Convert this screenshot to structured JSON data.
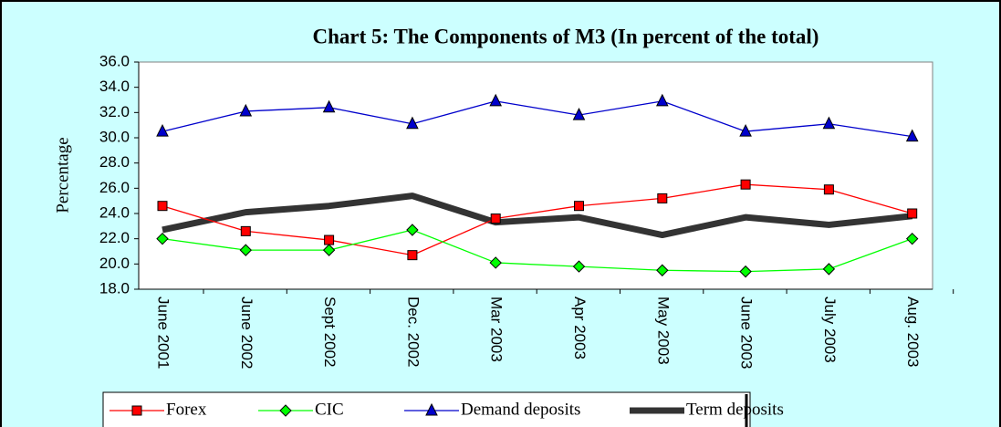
{
  "chart_data": {
    "type": "line",
    "title": "Chart 5:  The Components of M3 (In percent of the total)",
    "y_label": "Percentage",
    "categories": [
      "June 2001",
      "June 2002",
      "Sept 2002",
      "Dec. 2002",
      "Mar 2003",
      "Apr 2003",
      "May 2003",
      "June 2003",
      "July 2003",
      "Aug. 2003"
    ],
    "series": [
      {
        "name": "Forex",
        "color": "#ff0000",
        "marker": "square",
        "values": [
          24.6,
          22.6,
          21.9,
          20.7,
          23.6,
          24.6,
          25.2,
          26.3,
          25.9,
          24.0
        ]
      },
      {
        "name": "CIC",
        "color": "#00ff00",
        "marker": "diamond",
        "values": [
          22.0,
          21.1,
          21.1,
          22.7,
          20.1,
          19.8,
          19.5,
          19.4,
          19.6,
          22.0
        ]
      },
      {
        "name": "Demand deposits",
        "color": "#0000cc",
        "marker": "triangle",
        "values": [
          30.5,
          32.1,
          32.4,
          31.1,
          32.9,
          31.8,
          32.9,
          30.5,
          31.1,
          30.1
        ]
      },
      {
        "name": "Term deposits",
        "color": "#333333",
        "marker": "none",
        "line_width": 7,
        "values": [
          22.7,
          24.1,
          24.6,
          25.4,
          23.3,
          23.7,
          22.3,
          23.7,
          23.1,
          23.8
        ]
      }
    ],
    "ylim": [
      18,
      36
    ],
    "yticks": [
      {
        "value": 18,
        "label": "18.0"
      },
      {
        "value": 20,
        "label": "20.0"
      },
      {
        "value": 22,
        "label": "22.0"
      },
      {
        "value": 24,
        "label": "24.0"
      },
      {
        "value": 26,
        "label": "26.0"
      },
      {
        "value": 28,
        "label": "28.0"
      },
      {
        "value": 30,
        "label": "30.0"
      },
      {
        "value": 32,
        "label": "32.0"
      },
      {
        "value": 34,
        "label": "34.0"
      },
      {
        "value": 36,
        "label": "36.0"
      }
    ],
    "legend": "bottom"
  }
}
